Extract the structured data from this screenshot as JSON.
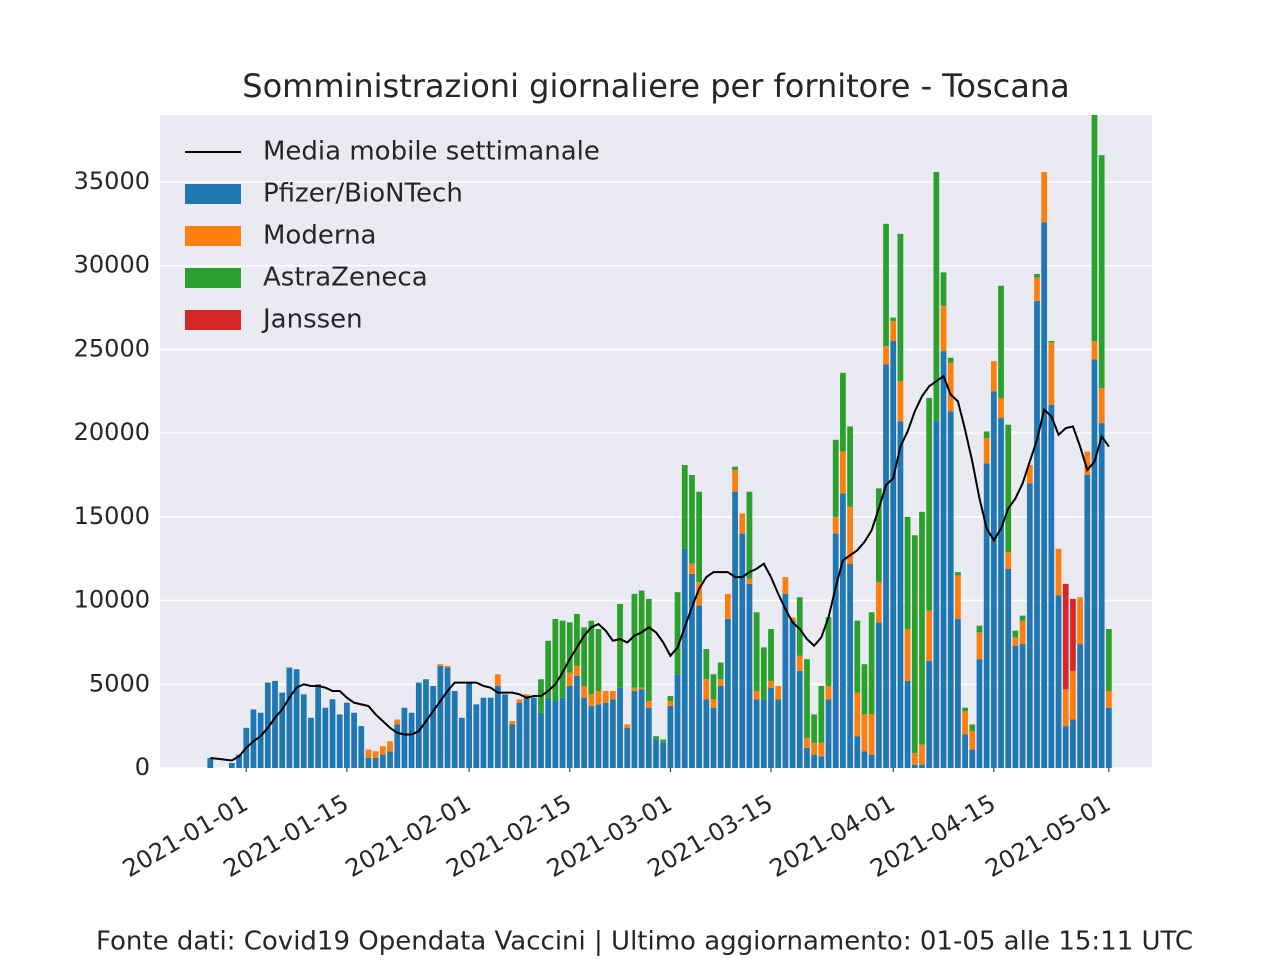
{
  "chart_data": {
    "type": "stacked_bar",
    "title": "Somministrazioni giornaliere per fornitore - Toscana",
    "footer": "Fonte dati: Covid19 Opendata Vaccini | Ultimo aggiornamento: 01-05 alle 15:11 UTC",
    "x": [
      "2020-12-27",
      "2020-12-28",
      "2020-12-29",
      "2020-12-30",
      "2020-12-31",
      "2021-01-01",
      "2021-01-02",
      "2021-01-03",
      "2021-01-04",
      "2021-01-05",
      "2021-01-06",
      "2021-01-07",
      "2021-01-08",
      "2021-01-09",
      "2021-01-10",
      "2021-01-11",
      "2021-01-12",
      "2021-01-13",
      "2021-01-14",
      "2021-01-15",
      "2021-01-16",
      "2021-01-17",
      "2021-01-18",
      "2021-01-19",
      "2021-01-20",
      "2021-01-21",
      "2021-01-22",
      "2021-01-23",
      "2021-01-24",
      "2021-01-25",
      "2021-01-26",
      "2021-01-27",
      "2021-01-28",
      "2021-01-29",
      "2021-01-30",
      "2021-01-31",
      "2021-02-01",
      "2021-02-02",
      "2021-02-03",
      "2021-02-04",
      "2021-02-05",
      "2021-02-06",
      "2021-02-07",
      "2021-02-08",
      "2021-02-09",
      "2021-02-10",
      "2021-02-11",
      "2021-02-12",
      "2021-02-13",
      "2021-02-14",
      "2021-02-15",
      "2021-02-16",
      "2021-02-17",
      "2021-02-18",
      "2021-02-19",
      "2021-02-20",
      "2021-02-21",
      "2021-02-22",
      "2021-02-23",
      "2021-02-24",
      "2021-02-25",
      "2021-02-26",
      "2021-02-27",
      "2021-02-28",
      "2021-03-01",
      "2021-03-02",
      "2021-03-03",
      "2021-03-04",
      "2021-03-05",
      "2021-03-06",
      "2021-03-07",
      "2021-03-08",
      "2021-03-09",
      "2021-03-10",
      "2021-03-11",
      "2021-03-12",
      "2021-03-13",
      "2021-03-14",
      "2021-03-15",
      "2021-03-16",
      "2021-03-17",
      "2021-03-18",
      "2021-03-19",
      "2021-03-20",
      "2021-03-21",
      "2021-03-22",
      "2021-03-23",
      "2021-03-24",
      "2021-03-25",
      "2021-03-26",
      "2021-03-27",
      "2021-03-28",
      "2021-03-29",
      "2021-03-30",
      "2021-03-31",
      "2021-04-01",
      "2021-04-02",
      "2021-04-03",
      "2021-04-04",
      "2021-04-05",
      "2021-04-06",
      "2021-04-07",
      "2021-04-08",
      "2021-04-09",
      "2021-04-10",
      "2021-04-11",
      "2021-04-12",
      "2021-04-13",
      "2021-04-14",
      "2021-04-15",
      "2021-04-16",
      "2021-04-17",
      "2021-04-18",
      "2021-04-19",
      "2021-04-20",
      "2021-04-21",
      "2021-04-22",
      "2021-04-23",
      "2021-04-24",
      "2021-04-25",
      "2021-04-26",
      "2021-04-27",
      "2021-04-28",
      "2021-04-29",
      "2021-04-30",
      "2021-05-01"
    ],
    "series": [
      {
        "name": "Pfizer/BioNTech",
        "color": "#1f77b4",
        "values": [
          600,
          0,
          0,
          300,
          800,
          2400,
          3500,
          3300,
          5100,
          5200,
          4500,
          6000,
          5900,
          4400,
          3000,
          5000,
          3600,
          4100,
          3200,
          3900,
          3300,
          2500,
          600,
          600,
          800,
          1000,
          2600,
          3600,
          3300,
          5100,
          5300,
          4900,
          6100,
          6000,
          4600,
          3000,
          5100,
          3800,
          4200,
          4200,
          4900,
          4400,
          2600,
          3900,
          4200,
          4200,
          3300,
          4200,
          4000,
          4200,
          4900,
          5500,
          4200,
          3700,
          3800,
          3900,
          4100,
          4800,
          2400,
          4600,
          4700,
          3600,
          1700,
          1500,
          3700,
          5600,
          13100,
          11600,
          9700,
          4100,
          3600,
          4900,
          8900,
          16500,
          14000,
          11000,
          4100,
          4100,
          4800,
          4100,
          10400,
          8800,
          5800,
          1200,
          800,
          700,
          4100,
          14000,
          16400,
          12200,
          1900,
          1000,
          800,
          8700,
          24100,
          25500,
          20700,
          5200,
          200,
          200,
          6400,
          20700,
          24900,
          21300,
          8900,
          2000,
          1100,
          6500,
          18200,
          22500,
          20900,
          11900,
          7300,
          7400,
          17000,
          27900,
          32600,
          21700,
          10300,
          2500,
          2900,
          7400,
          17500,
          24400,
          20600,
          3600
        ]
      },
      {
        "name": "Moderna",
        "color": "#ff7f0e",
        "values": [
          0,
          0,
          0,
          0,
          0,
          0,
          0,
          0,
          0,
          0,
          0,
          0,
          0,
          0,
          0,
          0,
          0,
          0,
          0,
          0,
          0,
          0,
          500,
          400,
          500,
          600,
          300,
          0,
          0,
          0,
          0,
          0,
          100,
          100,
          0,
          0,
          0,
          0,
          0,
          0,
          700,
          0,
          200,
          200,
          200,
          0,
          0,
          0,
          0,
          0,
          800,
          600,
          700,
          700,
          800,
          700,
          500,
          0,
          200,
          200,
          100,
          400,
          0,
          0,
          300,
          0,
          0,
          600,
          1400,
          1200,
          500,
          400,
          1500,
          1300,
          1200,
          300,
          500,
          0,
          400,
          800,
          1000,
          200,
          900,
          600,
          700,
          800,
          800,
          1000,
          2500,
          3400,
          2600,
          2200,
          2400,
          2400,
          1100,
          1200,
          2400,
          3100,
          700,
          1200,
          3000,
          0,
          2700,
          2900,
          2600,
          1400,
          1100,
          1600,
          1500,
          1800,
          1200,
          1000,
          500,
          1400,
          1100,
          1400,
          3000,
          3700,
          2800,
          2200,
          2900,
          2800,
          1400,
          1100,
          2100,
          1000
        ]
      },
      {
        "name": "AstraZeneca",
        "color": "#2ca02c",
        "values": [
          0,
          0,
          0,
          0,
          0,
          0,
          0,
          0,
          0,
          0,
          0,
          0,
          0,
          0,
          0,
          0,
          0,
          0,
          0,
          0,
          0,
          0,
          0,
          0,
          0,
          0,
          0,
          0,
          0,
          0,
          0,
          0,
          0,
          0,
          0,
          0,
          0,
          0,
          0,
          0,
          0,
          0,
          0,
          0,
          0,
          0,
          2000,
          3400,
          4900,
          4600,
          3000,
          3100,
          3500,
          4400,
          3700,
          0,
          0,
          5000,
          0,
          5600,
          5800,
          6100,
          200,
          200,
          300,
          4900,
          5000,
          5300,
          5400,
          1800,
          1500,
          1000,
          0,
          200,
          0,
          5200,
          4700,
          3100,
          3100,
          0,
          0,
          0,
          3500,
          4700,
          1700,
          3400,
          4100,
          4600,
          4700,
          4800,
          4300,
          3000,
          6100,
          5600,
          7300,
          200,
          8800,
          6700,
          13000,
          13900,
          12700,
          14900,
          2000,
          300,
          200,
          200,
          400,
          400,
          400,
          0,
          6700,
          7600,
          400,
          300,
          0,
          200,
          0,
          100,
          0,
          0,
          0,
          0,
          0,
          13500,
          13900,
          3700
        ]
      },
      {
        "name": "Janssen",
        "color": "#d62728",
        "values": [
          0,
          0,
          0,
          0,
          0,
          0,
          0,
          0,
          0,
          0,
          0,
          0,
          0,
          0,
          0,
          0,
          0,
          0,
          0,
          0,
          0,
          0,
          0,
          0,
          0,
          0,
          0,
          0,
          0,
          0,
          0,
          0,
          0,
          0,
          0,
          0,
          0,
          0,
          0,
          0,
          0,
          0,
          0,
          0,
          0,
          0,
          0,
          0,
          0,
          0,
          0,
          0,
          0,
          0,
          0,
          0,
          0,
          0,
          0,
          0,
          0,
          0,
          0,
          0,
          0,
          0,
          0,
          0,
          0,
          0,
          0,
          0,
          0,
          0,
          0,
          0,
          0,
          0,
          0,
          0,
          0,
          0,
          0,
          0,
          0,
          0,
          0,
          0,
          0,
          0,
          0,
          0,
          0,
          0,
          0,
          0,
          0,
          0,
          0,
          0,
          0,
          0,
          0,
          0,
          0,
          0,
          0,
          0,
          0,
          0,
          0,
          0,
          0,
          0,
          0,
          0,
          0,
          0,
          0,
          6300,
          4300,
          0,
          0,
          0,
          0,
          0
        ]
      }
    ],
    "line": {
      "name": "Media mobile settimanale",
      "color": "#000000",
      "values": [
        600,
        550,
        500,
        450,
        700,
        1200,
        1600,
        1900,
        2400,
        3000,
        3500,
        4200,
        4800,
        5000,
        4900,
        4900,
        4800,
        4600,
        4600,
        4200,
        3900,
        3800,
        3700,
        3200,
        2800,
        2400,
        2100,
        2000,
        2000,
        2200,
        2800,
        3400,
        4000,
        4600,
        5100,
        5100,
        5100,
        5100,
        4900,
        4800,
        4500,
        4500,
        4500,
        4400,
        4200,
        4300,
        4300,
        4600,
        5000,
        5700,
        6500,
        7200,
        7900,
        8400,
        8600,
        8200,
        7600,
        7700,
        7500,
        7900,
        8100,
        8400,
        8100,
        7500,
        6700,
        7200,
        8400,
        9600,
        10700,
        11400,
        11700,
        11700,
        11700,
        11400,
        11400,
        11700,
        11900,
        12200,
        11400,
        10400,
        9500,
        8700,
        8300,
        7700,
        7300,
        7800,
        9000,
        10800,
        12400,
        12700,
        13000,
        13500,
        14200,
        15500,
        16900,
        17300,
        19200,
        20100,
        21300,
        22200,
        22800,
        23100,
        23400,
        22300,
        21900,
        20200,
        18300,
        16100,
        14300,
        13600,
        14300,
        15500,
        16100,
        17000,
        18300,
        19600,
        21400,
        21000,
        19900,
        20300,
        20400,
        19200,
        17800,
        18300,
        19800,
        19200
      ]
    },
    "xlim": [
      "2020-12-20",
      "2021-05-07"
    ],
    "xticks": [
      "2021-01-01",
      "2021-01-15",
      "2021-02-01",
      "2021-02-15",
      "2021-03-01",
      "2021-03-15",
      "2021-04-01",
      "2021-04-15",
      "2021-05-01"
    ],
    "ylim": [
      0,
      39000
    ],
    "yticks": [
      0,
      5000,
      10000,
      15000,
      20000,
      25000,
      30000,
      35000
    ],
    "grid": true,
    "legend": "upper left"
  }
}
